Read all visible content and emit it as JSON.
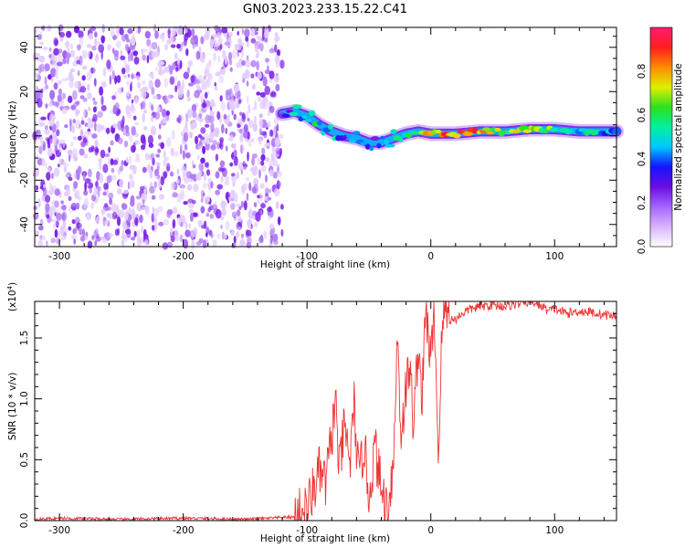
{
  "title": "GN03.2023.233.15.22.C41",
  "colors": {
    "signal_line": "#ee3333",
    "noise_dots": "#7a1ee8",
    "background": "#ffffff",
    "colormap": [
      "#ffffff",
      "#d9b3ff",
      "#a366ff",
      "#6a0de0",
      "#1414ff",
      "#00c8ff",
      "#00f0a0",
      "#2ee01e",
      "#dff000",
      "#ff8a00",
      "#ff1e1e",
      "#ff1a70"
    ]
  },
  "chart_data": [
    {
      "type": "heatmap",
      "ylabel": "Frequency (Hz)",
      "xlabel": "Height of straight line (km)",
      "xlim": [
        -320,
        150
      ],
      "ylim": [
        -50,
        49
      ],
      "x_ticks": [
        -300,
        -200,
        -100,
        0,
        100
      ],
      "x_tick_labels": [
        "-300",
        "-200",
        "-100",
        "0",
        "100"
      ],
      "y_ticks": [
        -40,
        -20,
        0,
        20,
        40
      ],
      "y_tick_labels": [
        "-40",
        "-20",
        "0",
        "20",
        "40"
      ],
      "noise_region_x": [
        -320,
        -120
      ],
      "signal_track": {
        "x": [
          -120,
          -110,
          -100,
          -90,
          -80,
          -70,
          -60,
          -50,
          -40,
          -30,
          -20,
          -10,
          0,
          20,
          40,
          60,
          80,
          100,
          120,
          150
        ],
        "y": [
          10,
          11,
          9,
          5,
          2,
          0,
          -1,
          -3,
          -3,
          -1,
          1,
          2,
          1,
          1,
          2,
          2,
          3,
          3,
          2,
          2
        ],
        "amplitude": [
          0.3,
          0.45,
          0.55,
          0.5,
          0.45,
          0.4,
          0.35,
          0.35,
          0.4,
          0.45,
          0.55,
          0.6,
          0.75,
          0.85,
          0.8,
          0.6,
          0.75,
          0.6,
          0.5,
          0.45
        ]
      },
      "colorbar": {
        "label": "Normalized spectral amplitude",
        "range": [
          0,
          1
        ],
        "ticks": [
          0.0,
          0.2,
          0.4,
          0.6,
          0.8
        ],
        "tick_labels": [
          "0.0",
          "0.2",
          "0.4",
          "0.6",
          "0.8"
        ]
      }
    },
    {
      "type": "line",
      "ylabel": "SNR (10 * v/v)",
      "xlabel": "Height of straight line (km)",
      "multiplier_label": "(x10",
      "multiplier_exp": "4",
      "multiplier_close": ")",
      "xlim": [
        -320,
        150
      ],
      "ylim": [
        0,
        1.8
      ],
      "x_ticks": [
        -300,
        -200,
        -100,
        0,
        100
      ],
      "x_tick_labels": [
        "-300",
        "-200",
        "-100",
        "0",
        "100"
      ],
      "y_ticks": [
        0,
        0.5,
        1.0,
        1.5
      ],
      "y_tick_labels": [
        "0.0",
        "0.5",
        "1.0",
        "1.5"
      ],
      "series": [
        {
          "x": [
            -320,
            -300,
            -250,
            -200,
            -150,
            -110,
            -100,
            -95,
            -90,
            -85,
            -80,
            -77,
            -74,
            -70,
            -65,
            -62,
            -58,
            -54,
            -50,
            -45,
            -40,
            -35,
            -30,
            -27,
            -24,
            -20,
            -17,
            -14,
            -10,
            -7,
            -4,
            0,
            3,
            6,
            9,
            12,
            15,
            20,
            25,
            30,
            40,
            50,
            60,
            70,
            80,
            90,
            95,
            100,
            110,
            120,
            130,
            140,
            150
          ],
          "y": [
            0.01,
            0.02,
            0.01,
            0.02,
            0.01,
            0.03,
            0.1,
            0.25,
            0.4,
            0.3,
            0.7,
            1.0,
            0.4,
            0.75,
            0.5,
            0.95,
            0.3,
            0.65,
            0.2,
            0.6,
            0.25,
            0.1,
            0.5,
            1.55,
            0.7,
            1.1,
            1.25,
            0.8,
            1.45,
            1.0,
            1.75,
            1.3,
            1.7,
            0.5,
            1.55,
            1.8,
            1.65,
            1.65,
            1.7,
            1.73,
            1.76,
            1.77,
            1.76,
            1.78,
            1.8,
            1.76,
            1.72,
            1.74,
            1.7,
            1.72,
            1.71,
            1.69,
            1.68
          ]
        }
      ]
    }
  ]
}
